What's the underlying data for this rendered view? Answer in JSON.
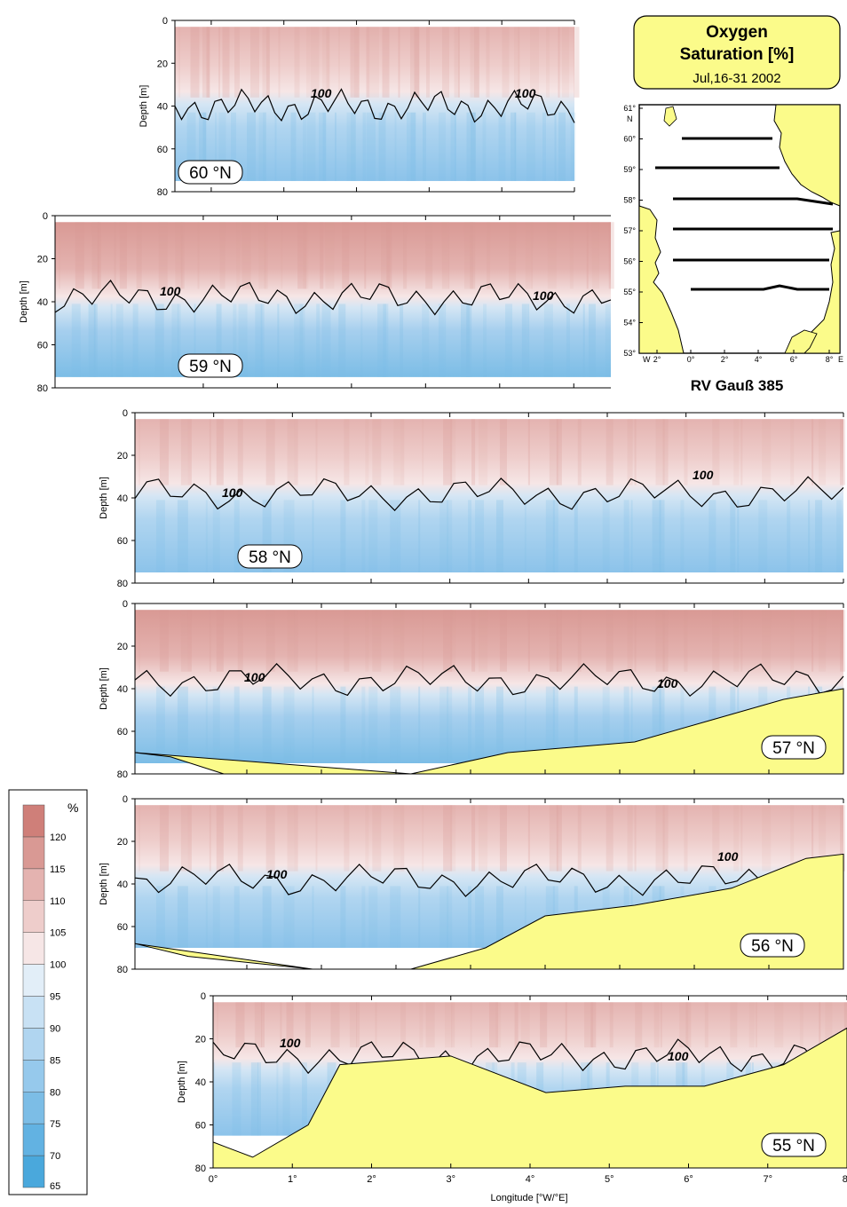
{
  "title": {
    "line1": "Oxygen",
    "line2": "Saturation [%]",
    "period": "Jul,16-31 2002"
  },
  "map": {
    "caption": "RV Gauß 385",
    "lat_ticks": [
      "61°",
      "60°",
      "59°",
      "58°",
      "57°",
      "56°",
      "55°",
      "54°",
      "53°"
    ],
    "lat_unit": "N",
    "lon_ticks": [
      "2°",
      "0°",
      "2°",
      "4°",
      "6°",
      "8°"
    ],
    "lon_west": "W",
    "lon_east": "E"
  },
  "colors": {
    "land": "#fbfb8a",
    "contour": "#000000",
    "scale": [
      "#4aa8dc",
      "#62b2e2",
      "#7cbde6",
      "#96c9ec",
      "#b0d5f0",
      "#c8e1f4",
      "#e2eef8",
      "#f6e6e6",
      "#eecdcb",
      "#e4b3b0",
      "#d99994",
      "#cf7f79"
    ]
  },
  "colorbar": {
    "unit": "%",
    "levels": [
      "65",
      "70",
      "75",
      "80",
      "85",
      "90",
      "95",
      "100",
      "105",
      "110",
      "115",
      "120"
    ]
  },
  "chart_data": {
    "type": "heatmap",
    "variable": "Oxygen Saturation [%]",
    "ylabel": "Depth [m]",
    "xlabel": "Longitude [°W/°E]",
    "x_ticks": [
      "0°",
      "1°",
      "2°",
      "3°",
      "4°",
      "5°",
      "6°",
      "7°",
      "8°"
    ],
    "xlim": [
      0,
      8
    ],
    "ylim": [
      0,
      80
    ],
    "y_ticks": [
      "0",
      "20",
      "40",
      "60",
      "80"
    ],
    "contour_level": "100",
    "sections": [
      {
        "label": "60 °N",
        "lon_start": -0.5,
        "lon_end": 5.0,
        "surface_mixed_layer_oxsat": 105,
        "deep_oxsat": 85,
        "contour_100_depth": 40,
        "max_depth": 75
      },
      {
        "label": "59 °N",
        "lon_start": -2.0,
        "lon_end": 5.5,
        "surface_mixed_layer_oxsat": 108,
        "deep_oxsat": 88,
        "contour_100_depth": 38,
        "max_depth": 75
      },
      {
        "label": "58 °N",
        "lon_start": -1.0,
        "lon_end": 8.0,
        "surface_mixed_layer_oxsat": 108,
        "deep_oxsat": 85,
        "contour_100_depth": 38,
        "max_depth": 75
      },
      {
        "label": "57 °N",
        "lon_start": -1.5,
        "lon_end": 8.0,
        "surface_mixed_layer_oxsat": 110,
        "deep_oxsat": 85,
        "contour_100_depth": 36,
        "max_depth": 75
      },
      {
        "label": "56 °N",
        "lon_start": -1.5,
        "lon_end": 8.0,
        "surface_mixed_layer_oxsat": 106,
        "deep_oxsat": 80,
        "contour_100_depth": 38,
        "max_depth": 70
      },
      {
        "label": "55 °N",
        "lon_start": 0.0,
        "lon_end": 8.0,
        "surface_mixed_layer_oxsat": 105,
        "deep_oxsat": 78,
        "contour_100_depth": 28,
        "max_depth": 65
      }
    ]
  }
}
